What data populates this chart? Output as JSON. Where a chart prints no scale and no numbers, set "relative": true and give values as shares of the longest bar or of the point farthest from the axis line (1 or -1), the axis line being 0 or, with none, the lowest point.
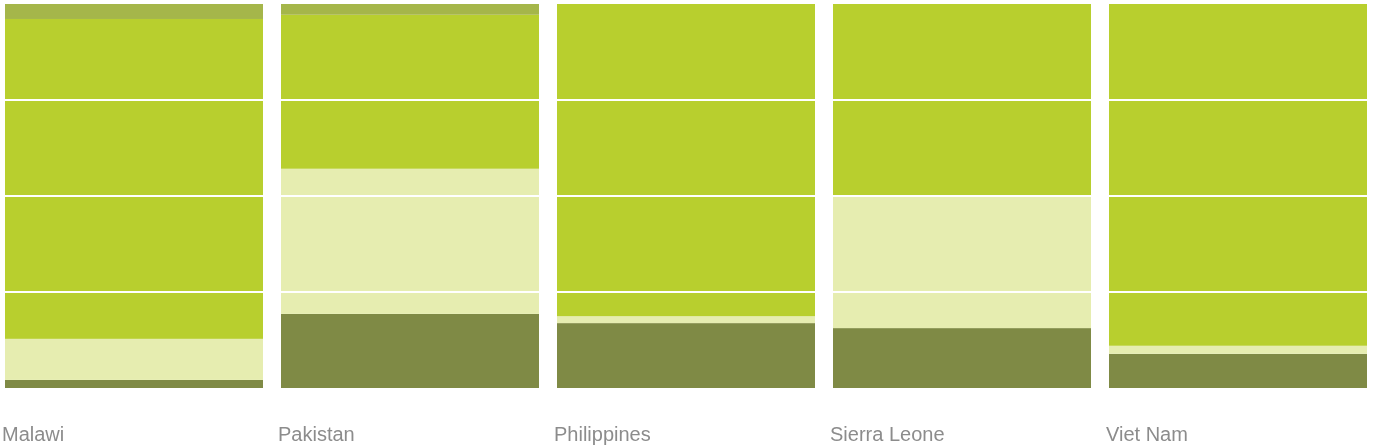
{
  "chart_data": {
    "type": "bar",
    "relative": true,
    "stacked": true,
    "categories": [
      "Malawi",
      "Pakistan",
      "Philippines",
      "Sierra Leone",
      "Viet Nam"
    ],
    "series": [
      {
        "color": "#7f8a45",
        "values": [
          0.021,
          0.193,
          0.169,
          0.156,
          0.089
        ]
      },
      {
        "color": "#e6edb0",
        "values": [
          0.107,
          0.378,
          0.018,
          0.344,
          0.021
        ]
      },
      {
        "color": "#b8cf2e",
        "values": [
          0.833,
          0.401,
          0.813,
          0.5,
          0.89
        ]
      },
      {
        "color": "#a5b64a",
        "values": [
          0.039,
          0.028,
          0,
          0,
          0
        ]
      }
    ],
    "ref_lines": [
      {
        "axis": "y",
        "value": 0.25,
        "color": "#ffffff"
      },
      {
        "axis": "y",
        "value": 0.5,
        "color": "#ffffff"
      },
      {
        "axis": "y",
        "value": 0.75,
        "color": "#ffffff"
      }
    ],
    "tick_labels": "x"
  }
}
